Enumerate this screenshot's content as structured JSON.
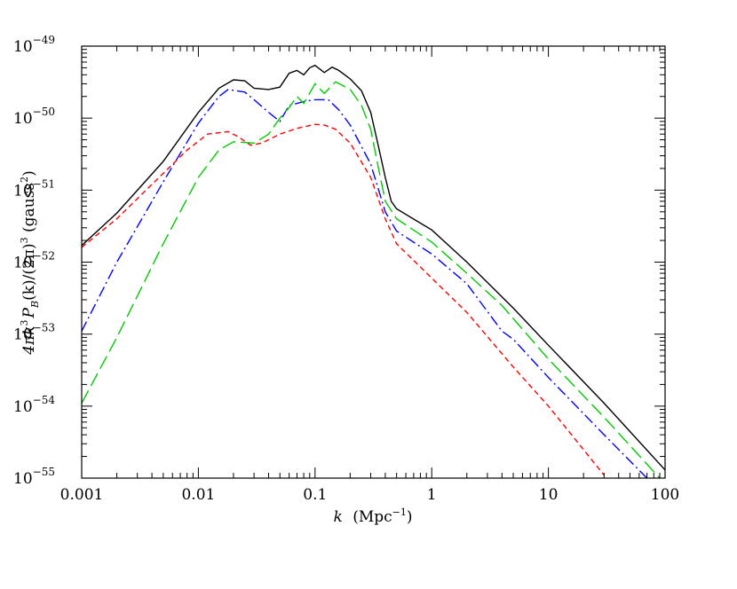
{
  "chart_data": {
    "type": "line",
    "xlabel_k": "k",
    "xlabel_unit": "(Mpc",
    "xlabel_exp": "−1",
    "xlabel_close": ")",
    "ylabel_pre": "4πk",
    "ylabel_exp3": "3",
    "ylabel_P": "P",
    "ylabel_sub": "B",
    "ylabel_mid": "(k)/(2π)",
    "ylabel_exp3b": "3",
    "ylabel_gauss": " (gauss",
    "ylabel_exp2": "2",
    "ylabel_close": ")",
    "x_scale": "log",
    "y_scale": "log",
    "xlim": [
      0.001,
      100
    ],
    "ylim": [
      1e-55,
      1e-49
    ],
    "x_ticks": [
      {
        "value": 0.001,
        "label": "0.001"
      },
      {
        "value": 0.01,
        "label": "0.01"
      },
      {
        "value": 0.1,
        "label": "0.1"
      },
      {
        "value": 1,
        "label": "1"
      },
      {
        "value": 10,
        "label": "10"
      },
      {
        "value": 100,
        "label": "100"
      }
    ],
    "y_ticks": [
      {
        "value": 1e-55,
        "base": "10",
        "exp": "−55"
      },
      {
        "value": 1e-54,
        "base": "10",
        "exp": "−54"
      },
      {
        "value": 1e-53,
        "base": "10",
        "exp": "−53"
      },
      {
        "value": 1e-52,
        "base": "10",
        "exp": "−52"
      },
      {
        "value": 1e-51,
        "base": "10",
        "exp": "−51"
      },
      {
        "value": 1e-50,
        "base": "10",
        "exp": "−50"
      },
      {
        "value": 1e-49,
        "base": "10",
        "exp": "−49"
      }
    ],
    "series": [
      {
        "color": "#000000",
        "dash": "solid",
        "points": [
          [
            0.001,
            1.7e-52
          ],
          [
            0.002,
            4.8e-52
          ],
          [
            0.005,
            2.5e-51
          ],
          [
            0.01,
            1.2e-50
          ],
          [
            0.015,
            2.6e-50
          ],
          [
            0.02,
            3.4e-50
          ],
          [
            0.025,
            3.3e-50
          ],
          [
            0.03,
            2.6e-50
          ],
          [
            0.04,
            2.5e-50
          ],
          [
            0.05,
            2.7e-50
          ],
          [
            0.06,
            4.2e-50
          ],
          [
            0.07,
            4.6e-50
          ],
          [
            0.08,
            4e-50
          ],
          [
            0.09,
            5e-50
          ],
          [
            0.1,
            5.4e-50
          ],
          [
            0.12,
            4.3e-50
          ],
          [
            0.14,
            5.1e-50
          ],
          [
            0.16,
            4.6e-50
          ],
          [
            0.2,
            3.5e-50
          ],
          [
            0.25,
            2.4e-50
          ],
          [
            0.3,
            1.2e-50
          ],
          [
            0.35,
            4e-51
          ],
          [
            0.4,
            1.5e-51
          ],
          [
            0.45,
            7e-52
          ],
          [
            0.5,
            5.5e-52
          ],
          [
            1,
            2.8e-52
          ],
          [
            2,
            1e-52
          ],
          [
            5,
            2.3e-53
          ],
          [
            10,
            7e-54
          ],
          [
            30,
            1.1e-54
          ],
          [
            100,
            1.3e-55
          ]
        ]
      },
      {
        "color": "#0000ff",
        "dash": "dashdot",
        "points": [
          [
            0.001,
            1.1e-53
          ],
          [
            0.002,
            1e-52
          ],
          [
            0.005,
            1.3e-51
          ],
          [
            0.01,
            8.5e-51
          ],
          [
            0.015,
            2e-50
          ],
          [
            0.018,
            2.5e-50
          ],
          [
            0.025,
            2.3e-50
          ],
          [
            0.03,
            1.8e-50
          ],
          [
            0.04,
            1.2e-50
          ],
          [
            0.05,
            9e-51
          ],
          [
            0.06,
            1.5e-50
          ],
          [
            0.08,
            1.7e-50
          ],
          [
            0.1,
            1.8e-50
          ],
          [
            0.13,
            1.8e-50
          ],
          [
            0.16,
            1.3e-50
          ],
          [
            0.2,
            8e-51
          ],
          [
            0.3,
            2.3e-51
          ],
          [
            0.4,
            5e-52
          ],
          [
            0.5,
            2.7e-52
          ],
          [
            1,
            1.3e-52
          ],
          [
            2,
            5e-53
          ],
          [
            4,
            1.1e-53
          ],
          [
            5,
            8.5e-54
          ],
          [
            10,
            2.5e-54
          ],
          [
            30,
            4e-55
          ],
          [
            70,
            1e-55
          ]
        ]
      },
      {
        "color": "#00cc00",
        "dash": "longdash",
        "points": [
          [
            0.001,
            1.1e-54
          ],
          [
            0.002,
            9e-54
          ],
          [
            0.005,
            1.8e-52
          ],
          [
            0.01,
            1.5e-51
          ],
          [
            0.015,
            3.6e-51
          ],
          [
            0.02,
            4.7e-51
          ],
          [
            0.03,
            4.5e-51
          ],
          [
            0.04,
            6e-51
          ],
          [
            0.05,
            1e-50
          ],
          [
            0.06,
            1.4e-50
          ],
          [
            0.07,
            2e-50
          ],
          [
            0.08,
            1.6e-50
          ],
          [
            0.1,
            3e-50
          ],
          [
            0.12,
            2.2e-50
          ],
          [
            0.15,
            3.2e-50
          ],
          [
            0.2,
            2.5e-50
          ],
          [
            0.25,
            1.5e-50
          ],
          [
            0.3,
            7e-51
          ],
          [
            0.35,
            2e-51
          ],
          [
            0.4,
            7e-52
          ],
          [
            0.5,
            4e-52
          ],
          [
            1,
            1.9e-52
          ],
          [
            2,
            7e-53
          ],
          [
            4,
            2.5e-53
          ],
          [
            10,
            4.5e-54
          ],
          [
            30,
            7e-55
          ],
          [
            90,
            1e-55
          ]
        ]
      },
      {
        "color": "#ff0000",
        "dash": "shortdash",
        "points": [
          [
            0.001,
            1.6e-52
          ],
          [
            0.002,
            4e-52
          ],
          [
            0.004,
            1.2e-51
          ],
          [
            0.008,
            3.6e-51
          ],
          [
            0.012,
            6e-51
          ],
          [
            0.018,
            6.5e-51
          ],
          [
            0.022,
            5.5e-51
          ],
          [
            0.028,
            4.2e-51
          ],
          [
            0.035,
            4.5e-51
          ],
          [
            0.05,
            6e-51
          ],
          [
            0.07,
            7.2e-51
          ],
          [
            0.1,
            8.2e-51
          ],
          [
            0.12,
            8e-51
          ],
          [
            0.15,
            7e-51
          ],
          [
            0.2,
            4.5e-51
          ],
          [
            0.3,
            1.5e-51
          ],
          [
            0.4,
            4e-52
          ],
          [
            0.5,
            1.8e-52
          ],
          [
            1,
            6e-53
          ],
          [
            2,
            2e-53
          ],
          [
            5,
            3.5e-54
          ],
          [
            10,
            1e-54
          ],
          [
            30,
            1.1e-55
          ]
        ]
      }
    ]
  }
}
